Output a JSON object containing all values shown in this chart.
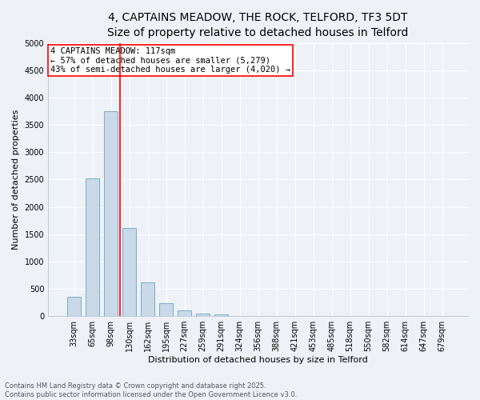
{
  "title_line1": "4, CAPTAINS MEADOW, THE ROCK, TELFORD, TF3 5DT",
  "title_line2": "Size of property relative to detached houses in Telford",
  "categories": [
    "33sqm",
    "65sqm",
    "98sqm",
    "130sqm",
    "162sqm",
    "195sqm",
    "227sqm",
    "259sqm",
    "291sqm",
    "324sqm",
    "356sqm",
    "388sqm",
    "421sqm",
    "453sqm",
    "485sqm",
    "518sqm",
    "550sqm",
    "582sqm",
    "614sqm",
    "647sqm",
    "679sqm"
  ],
  "values": [
    350,
    2520,
    3750,
    1620,
    620,
    240,
    100,
    40,
    25,
    0,
    0,
    0,
    0,
    0,
    0,
    0,
    0,
    0,
    0,
    0,
    0
  ],
  "bar_color": "#c9d9e8",
  "bar_edge_color": "#7aabcd",
  "vline_color": "red",
  "ylabel": "Number of detached properties",
  "xlabel": "Distribution of detached houses by size in Telford",
  "ylim": [
    0,
    5000
  ],
  "yticks": [
    0,
    500,
    1000,
    1500,
    2000,
    2500,
    3000,
    3500,
    4000,
    4500,
    5000
  ],
  "annotation_title": "4 CAPTAINS MEADOW: 117sqm",
  "annotation_line2": "← 57% of detached houses are smaller (5,279)",
  "annotation_line3": "43% of semi-detached houses are larger (4,020) →",
  "annotation_box_color": "white",
  "annotation_box_edgecolor": "red",
  "footer_line1": "Contains HM Land Registry data © Crown copyright and database right 2025.",
  "footer_line2": "Contains public sector information licensed under the Open Government Licence v3.0.",
  "background_color": "#eef2f7",
  "grid_color": "#ffffff",
  "title_fontsize": 10,
  "subtitle_fontsize": 9,
  "axis_label_fontsize": 8,
  "tick_fontsize": 7,
  "annotation_fontsize": 7.5,
  "footer_fontsize": 6
}
